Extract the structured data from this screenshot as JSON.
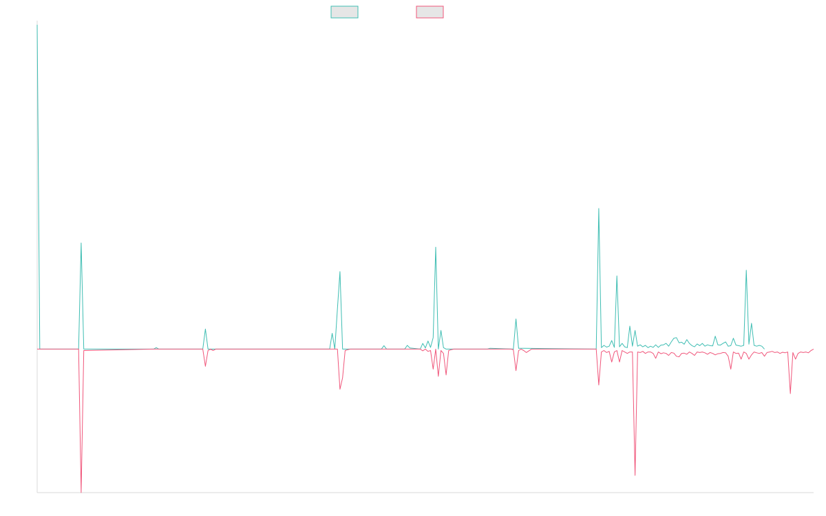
{
  "colors": {
    "series_a": "#3dbdb2",
    "series_b": "#f0557a",
    "legend_fill": "#e6e6e6",
    "axis": "#d8d8d8"
  },
  "chart_data": {
    "type": "line",
    "title": "",
    "xlabel": "",
    "ylabel": "",
    "x_range": [
      0,
      300
    ],
    "ylim": [
      -50,
      113
    ],
    "grid": false,
    "legend": "top-center",
    "series": [
      {
        "color": "#3dbdb2",
        "points": [
          [
            0,
            113
          ],
          [
            1,
            0
          ],
          [
            16,
            0
          ],
          [
            17,
            37
          ],
          [
            18,
            0
          ],
          [
            45,
            0
          ],
          [
            46,
            0.5
          ],
          [
            47,
            0
          ],
          [
            64,
            0
          ],
          [
            65,
            7
          ],
          [
            66,
            0
          ],
          [
            69,
            0
          ],
          [
            110,
            0
          ],
          [
            113,
            0
          ],
          [
            114,
            5.5
          ],
          [
            115,
            0
          ],
          [
            116,
            14
          ],
          [
            117,
            27
          ],
          [
            118,
            0
          ],
          [
            133,
            0
          ],
          [
            134,
            1.2
          ],
          [
            135,
            0
          ],
          [
            142,
            0
          ],
          [
            143,
            1.3
          ],
          [
            144,
            0.4
          ],
          [
            148,
            0
          ],
          [
            149,
            2
          ],
          [
            150,
            0.4
          ],
          [
            151,
            2.8
          ],
          [
            152,
            0.6
          ],
          [
            153,
            4
          ],
          [
            154,
            35.5
          ],
          [
            155,
            0
          ],
          [
            156,
            6.5
          ],
          [
            157,
            0.5
          ],
          [
            158,
            0
          ],
          [
            174,
            0
          ],
          [
            175,
            0.3
          ],
          [
            184,
            0
          ],
          [
            185,
            10.5
          ],
          [
            186,
            0.3
          ],
          [
            196,
            0.2
          ],
          [
            216,
            0
          ],
          [
            217,
            49
          ],
          [
            218,
            0.5
          ],
          [
            219,
            1.3
          ],
          [
            220,
            0.7
          ],
          [
            221,
            1
          ],
          [
            222,
            3
          ],
          [
            223,
            0.6
          ],
          [
            224,
            25.5
          ],
          [
            225,
            0.8
          ],
          [
            226,
            2
          ],
          [
            227,
            0.8
          ],
          [
            228,
            0.5
          ],
          [
            229,
            8
          ],
          [
            230,
            1
          ],
          [
            231,
            6.5
          ],
          [
            232,
            1
          ],
          [
            233,
            1.5
          ],
          [
            234,
            0.8
          ],
          [
            235,
            1.3
          ],
          [
            236,
            0.5
          ],
          [
            237,
            1
          ],
          [
            238,
            0.6
          ],
          [
            239,
            1.5
          ],
          [
            240,
            0.6
          ],
          [
            241,
            1.4
          ],
          [
            242,
            1.5
          ],
          [
            243,
            2
          ],
          [
            244,
            1
          ],
          [
            245,
            2.5
          ],
          [
            246,
            3.8
          ],
          [
            247,
            4
          ],
          [
            248,
            2.2
          ],
          [
            249,
            2.4
          ],
          [
            250,
            1.7
          ],
          [
            251,
            3.3
          ],
          [
            252,
            2
          ],
          [
            253,
            1.2
          ],
          [
            254,
            0.8
          ],
          [
            255,
            1.8
          ],
          [
            256,
            1.2
          ],
          [
            257,
            2
          ],
          [
            258,
            1
          ],
          [
            259,
            1.5
          ],
          [
            260,
            1.2
          ],
          [
            261,
            1.1
          ],
          [
            262,
            4.5
          ],
          [
            263,
            1.5
          ],
          [
            264,
            1.4
          ],
          [
            265,
            2
          ],
          [
            266,
            2.5
          ],
          [
            267,
            1
          ],
          [
            268,
            1.2
          ],
          [
            269,
            3.8
          ],
          [
            270,
            1.4
          ],
          [
            271,
            1.2
          ],
          [
            272,
            1
          ],
          [
            273,
            1.3
          ],
          [
            274,
            27.5
          ],
          [
            275,
            1.7
          ],
          [
            276,
            9
          ],
          [
            277,
            1.3
          ],
          [
            278,
            1
          ],
          [
            279,
            1.3
          ],
          [
            280,
            1
          ],
          [
            281,
            0
          ]
        ]
      },
      {
        "color": "#f0557a",
        "points": [
          [
            0,
            0
          ],
          [
            16,
            0
          ],
          [
            17,
            -50
          ],
          [
            18,
            -0.5
          ],
          [
            45,
            0
          ],
          [
            64,
            0
          ],
          [
            65,
            -6
          ],
          [
            66,
            -0.5
          ],
          [
            67,
            0
          ],
          [
            68,
            -0.5
          ],
          [
            69,
            0
          ],
          [
            116,
            0
          ],
          [
            117,
            -14
          ],
          [
            118,
            -10
          ],
          [
            119,
            -0.5
          ],
          [
            120,
            -0.2
          ],
          [
            121,
            0
          ],
          [
            148,
            0
          ],
          [
            149,
            -0.6
          ],
          [
            150,
            0
          ],
          [
            151,
            -0.8
          ],
          [
            152,
            -0.5
          ],
          [
            153,
            -7
          ],
          [
            154,
            0
          ],
          [
            155,
            -9.5
          ],
          [
            156,
            -0.5
          ],
          [
            157,
            -1.5
          ],
          [
            158,
            -9
          ],
          [
            159,
            -0.5
          ],
          [
            160,
            -0.2
          ],
          [
            161,
            0
          ],
          [
            183,
            0
          ],
          [
            184,
            -0.2
          ],
          [
            185,
            -7.5
          ],
          [
            186,
            -0.5
          ],
          [
            187,
            0
          ],
          [
            188,
            -0.5
          ],
          [
            189,
            -1.2
          ],
          [
            190,
            -0.6
          ],
          [
            191,
            0
          ],
          [
            216,
            0
          ],
          [
            217,
            -12.5
          ],
          [
            218,
            -1
          ],
          [
            219,
            -0.5
          ],
          [
            220,
            -1.2
          ],
          [
            221,
            -0.8
          ],
          [
            222,
            -4.5
          ],
          [
            223,
            -1
          ],
          [
            224,
            -0.5
          ],
          [
            225,
            -4.5
          ],
          [
            226,
            -0.5
          ],
          [
            227,
            -1
          ],
          [
            228,
            -1.5
          ],
          [
            229,
            -1
          ],
          [
            230,
            -1
          ],
          [
            231,
            -44
          ],
          [
            232,
            -1
          ],
          [
            233,
            -1.2
          ],
          [
            234,
            -0.8
          ],
          [
            235,
            -1.5
          ],
          [
            236,
            -1
          ],
          [
            237,
            -1
          ],
          [
            238,
            -1.5
          ],
          [
            239,
            -3.2
          ],
          [
            240,
            -1
          ],
          [
            241,
            -1.6
          ],
          [
            242,
            -1.3
          ],
          [
            243,
            -1.5
          ],
          [
            244,
            -2.2
          ],
          [
            245,
            -1.2
          ],
          [
            246,
            -1.4
          ],
          [
            247,
            -2.5
          ],
          [
            248,
            -2.7
          ],
          [
            249,
            -1.5
          ],
          [
            250,
            -1.4
          ],
          [
            251,
            -1.8
          ],
          [
            252,
            -1
          ],
          [
            253,
            -1.5
          ],
          [
            254,
            -2.2
          ],
          [
            255,
            -1
          ],
          [
            256,
            -1.2
          ],
          [
            257,
            -1
          ],
          [
            258,
            -1.3
          ],
          [
            259,
            -1.8
          ],
          [
            260,
            -1.2
          ],
          [
            261,
            -1.5
          ],
          [
            262,
            -2
          ],
          [
            263,
            -1.6
          ],
          [
            264,
            -1.5
          ],
          [
            265,
            -1.2
          ],
          [
            266,
            -1.3
          ],
          [
            267,
            -2.5
          ],
          [
            268,
            -7
          ],
          [
            269,
            -1
          ],
          [
            270,
            -1.5
          ],
          [
            271,
            -1.4
          ],
          [
            272,
            -3.5
          ],
          [
            273,
            -1
          ],
          [
            274,
            -1.5
          ],
          [
            275,
            -3.5
          ],
          [
            276,
            -2
          ],
          [
            277,
            -1
          ],
          [
            278,
            -1.3
          ],
          [
            279,
            -1.5
          ],
          [
            280,
            -1.2
          ],
          [
            281,
            -2.5
          ],
          [
            282,
            -1.2
          ],
          [
            283,
            -1
          ],
          [
            284,
            -0.8
          ],
          [
            285,
            -1.2
          ],
          [
            286,
            -1
          ],
          [
            287,
            -1.5
          ],
          [
            288,
            -1.1
          ],
          [
            289,
            -1.3
          ],
          [
            290,
            -1
          ],
          [
            291,
            -15.5
          ],
          [
            292,
            -1.2
          ],
          [
            293,
            -3.5
          ],
          [
            294,
            -1.5
          ],
          [
            295,
            -1
          ],
          [
            296,
            -1.2
          ],
          [
            297,
            -1
          ],
          [
            298,
            -1.3
          ],
          [
            299,
            -0.5
          ],
          [
            300,
            0
          ]
        ]
      }
    ]
  }
}
